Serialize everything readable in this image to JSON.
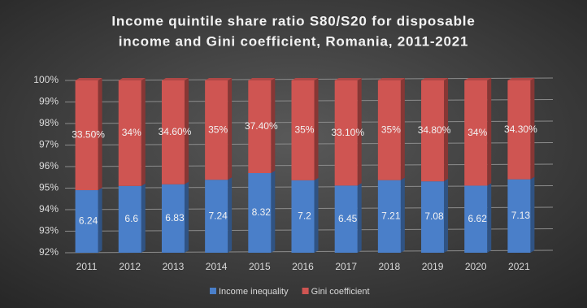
{
  "chart_data": {
    "type": "bar",
    "stacked": "percent",
    "title": [
      "Income quintile share ratio S80/S20 for disposable",
      "income and Gini coefficient, Romania, 2011-2021"
    ],
    "categories": [
      "2011",
      "2012",
      "2013",
      "2014",
      "2015",
      "2016",
      "2017",
      "2018",
      "2019",
      "2020",
      "2021"
    ],
    "series": [
      {
        "name": "Income inequality",
        "color": "#4a7fc9",
        "values": [
          6.24,
          6.6,
          6.83,
          7.24,
          8.32,
          7.2,
          6.45,
          7.21,
          7.08,
          6.62,
          7.13
        ]
      },
      {
        "name": "Gini coefficient",
        "color": "#cf5552",
        "values": [
          0.335,
          0.34,
          0.346,
          0.35,
          0.374,
          0.35,
          0.331,
          0.35,
          0.348,
          0.34,
          0.343
        ],
        "value_labels": [
          "33.50%",
          "34%",
          "34.60%",
          "35%",
          "37.40%",
          "35%",
          "33.10%",
          "35%",
          "34.80%",
          "34%",
          "34.30%"
        ]
      }
    ],
    "ylim": [
      92,
      100
    ],
    "yticks": [
      {
        "value": 92,
        "label": "92%"
      },
      {
        "value": 93,
        "label": "93%"
      },
      {
        "value": 94,
        "label": "94%"
      },
      {
        "value": 95,
        "label": "95%"
      },
      {
        "value": 96,
        "label": "96%"
      },
      {
        "value": 97,
        "label": "97%"
      },
      {
        "value": 98,
        "label": "98%"
      },
      {
        "value": 99,
        "label": "99%"
      },
      {
        "value": 100,
        "label": "100%"
      }
    ],
    "grid": true,
    "legend": "bottom"
  }
}
